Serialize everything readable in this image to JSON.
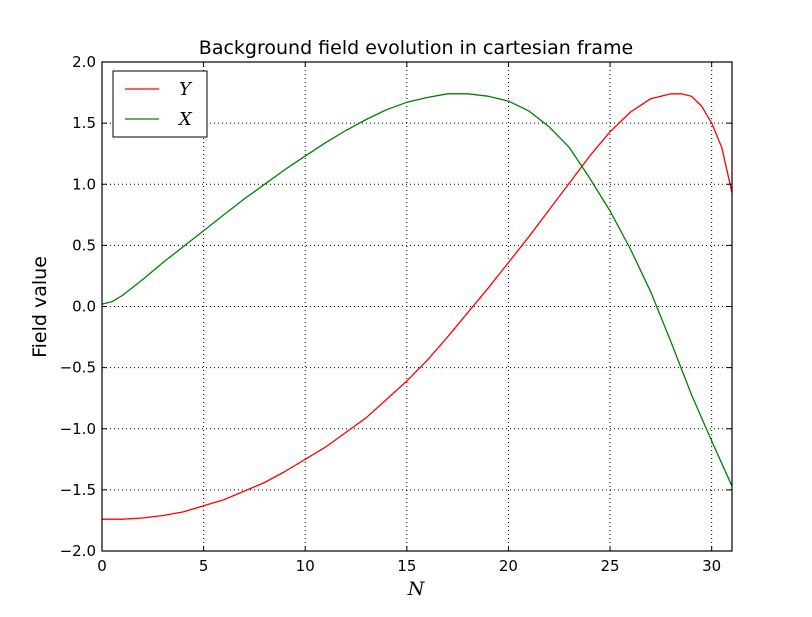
{
  "chart_data": {
    "type": "line",
    "title": "Background field evolution in cartesian frame",
    "xlabel": "N",
    "ylabel": "Field value",
    "xlim": [
      0,
      31
    ],
    "ylim": [
      -2.0,
      2.0
    ],
    "xticks": [
      0,
      5,
      10,
      15,
      20,
      25,
      30
    ],
    "xtick_labels": [
      "0",
      "5",
      "10",
      "15",
      "20",
      "25",
      "30"
    ],
    "yticks": [
      -2.0,
      -1.5,
      -1.0,
      -0.5,
      0.0,
      0.5,
      1.0,
      1.5,
      2.0
    ],
    "ytick_labels": [
      "−2.0",
      "−1.5",
      "−1.0",
      "−0.5",
      "0.0",
      "0.5",
      "1.0",
      "1.5",
      "2.0"
    ],
    "grid": true,
    "legend_position": "top-left",
    "series": [
      {
        "name": "Y",
        "color": "#ff0000",
        "x": [
          0,
          1,
          2,
          3,
          4,
          5,
          6,
          7,
          8,
          9,
          10,
          11,
          12,
          13,
          14,
          15,
          16,
          17,
          18,
          19,
          20,
          21,
          22,
          23,
          24,
          25,
          26,
          27,
          28,
          28.5,
          29,
          29.5,
          30,
          30.5,
          31
        ],
        "y": [
          -1.74,
          -1.74,
          -1.73,
          -1.71,
          -1.68,
          -1.63,
          -1.58,
          -1.51,
          -1.44,
          -1.35,
          -1.25,
          -1.15,
          -1.03,
          -0.91,
          -0.76,
          -0.61,
          -0.44,
          -0.25,
          -0.05,
          0.15,
          0.36,
          0.57,
          0.79,
          1.01,
          1.23,
          1.43,
          1.59,
          1.7,
          1.74,
          1.74,
          1.72,
          1.64,
          1.5,
          1.3,
          0.93
        ]
      },
      {
        "name": "X",
        "color": "#008000",
        "x": [
          0,
          0.5,
          1,
          2,
          3,
          4,
          5,
          6,
          7,
          8,
          9,
          10,
          11,
          12,
          13,
          14,
          15,
          16,
          17,
          18,
          19,
          20,
          21,
          22,
          23,
          24,
          25,
          26,
          27,
          28,
          29,
          30,
          31
        ],
        "y": [
          0.02,
          0.04,
          0.09,
          0.22,
          0.36,
          0.49,
          0.62,
          0.75,
          0.88,
          1.0,
          1.12,
          1.23,
          1.34,
          1.44,
          1.53,
          1.61,
          1.67,
          1.71,
          1.74,
          1.74,
          1.72,
          1.68,
          1.6,
          1.47,
          1.3,
          1.05,
          0.78,
          0.47,
          0.12,
          -0.29,
          -0.72,
          -1.1,
          -1.47
        ]
      }
    ]
  }
}
